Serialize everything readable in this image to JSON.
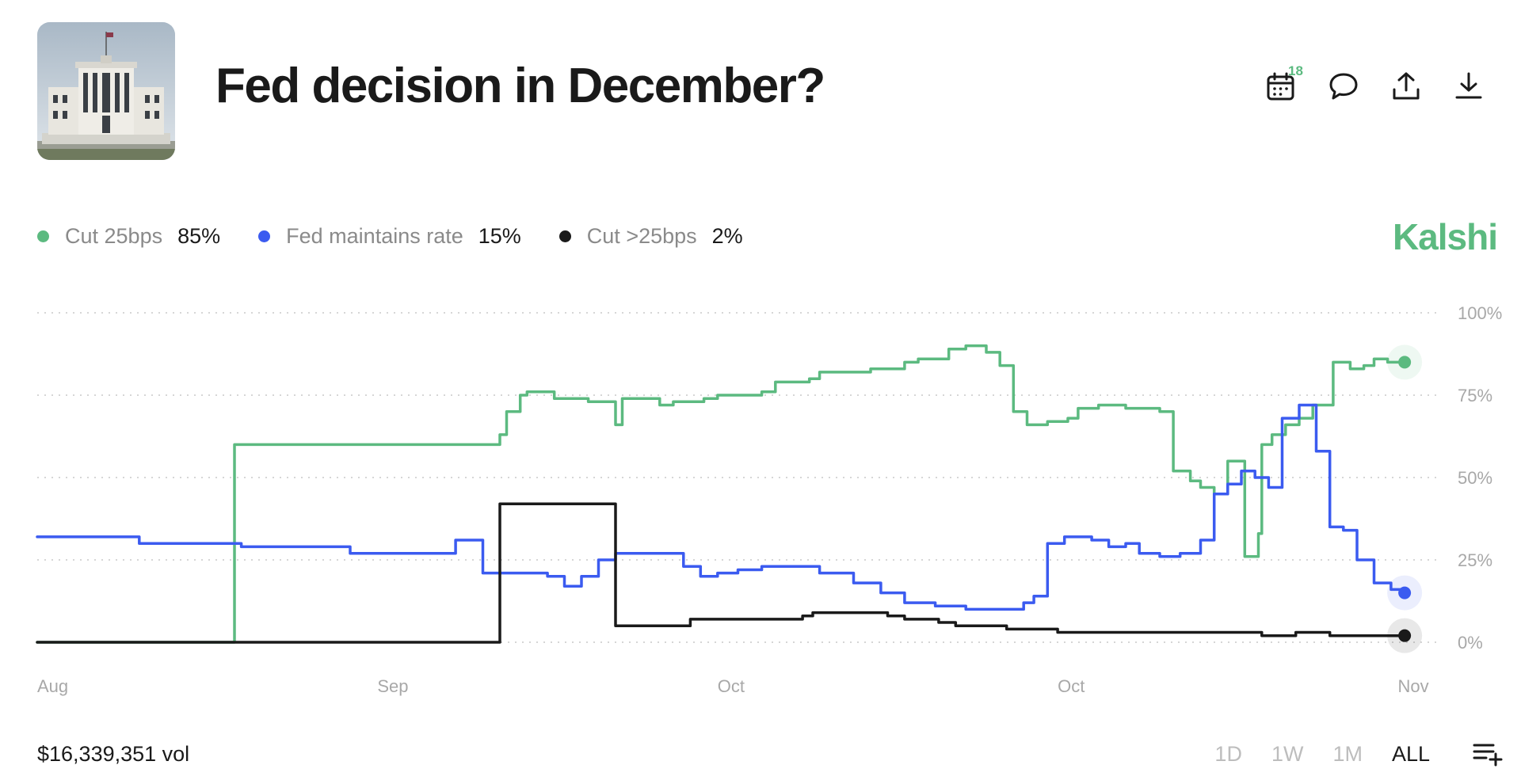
{
  "header": {
    "title": "Fed decision in December?",
    "thumbnail_icon": "federal-reserve-building-photo",
    "calendar_badge": "18",
    "actions": [
      "calendar-icon",
      "comment-icon",
      "share-icon",
      "download-icon"
    ]
  },
  "brand": {
    "name": "Kalshi",
    "color": "#5cba80"
  },
  "legend": [
    {
      "name": "Cut 25bps",
      "value": "85%",
      "color": "#5cba80"
    },
    {
      "name": "Fed maintains rate",
      "value": "15%",
      "color": "#3b5bf0"
    },
    {
      "name": "Cut >25bps",
      "value": "2%",
      "color": "#1a1a1a"
    }
  ],
  "footer": {
    "volume": "$16,339,351 vol",
    "ranges": [
      "1D",
      "1W",
      "1M",
      "ALL"
    ],
    "active_range": "ALL",
    "menu_icon": "list-add-icon"
  },
  "chart_data": {
    "type": "line",
    "title": "",
    "xlabel": "",
    "ylabel": "",
    "ylim": [
      0,
      100
    ],
    "yticks": [
      "100%",
      "75%",
      "50%",
      "25%",
      "0%"
    ],
    "yticks_values": [
      100,
      75,
      50,
      25,
      0
    ],
    "xticks": [
      "Aug",
      "Sep",
      "Oct",
      "Oct",
      "Nov"
    ],
    "xticks_pos": [
      0,
      10,
      20,
      30,
      40
    ],
    "xlim": [
      0,
      40.5
    ],
    "grid": "horizontal-dotted",
    "legend_position": "top-left",
    "series": [
      {
        "name": "Cut 25bps",
        "color": "#5cba80",
        "x": [
          0,
          5.8,
          5.8,
          13.2,
          13.6,
          13.8,
          14.2,
          14.4,
          15.2,
          16.2,
          17.0,
          17.2,
          18.3,
          18.7,
          19.6,
          20.0,
          21.3,
          21.7,
          22.7,
          23.0,
          23.9,
          24.5,
          25.5,
          25.9,
          26.8,
          27.3,
          27.9,
          28.3,
          28.7,
          29.1,
          29.7,
          30.3,
          30.6,
          31.2,
          32.0,
          32.4,
          33.0,
          33.4,
          33.9,
          34.2,
          34.6,
          35.0,
          35.5,
          35.9,
          36.0,
          36.3,
          36.7,
          37.1,
          37.5,
          38.1,
          38.6,
          39.0,
          39.3,
          39.7,
          40.2
        ],
        "values": [
          0,
          0,
          60,
          60,
          63,
          70,
          75,
          76,
          74,
          73,
          66,
          74,
          72,
          73,
          74,
          75,
          76,
          79,
          80,
          82,
          82,
          83,
          85,
          86,
          89,
          90,
          88,
          84,
          70,
          66,
          67,
          68,
          71,
          72,
          71,
          71,
          70,
          52,
          49,
          47,
          45,
          55,
          26,
          33,
          60,
          63,
          66,
          68,
          72,
          85,
          83,
          84,
          86,
          85,
          85
        ]
      },
      {
        "name": "Fed maintains rate",
        "color": "#3b5bf0",
        "x": [
          0,
          2.8,
          3.0,
          6.0,
          9.2,
          12.3,
          13.1,
          13.6,
          15.0,
          15.5,
          16.0,
          16.5,
          17.0,
          18.3,
          19.0,
          19.5,
          20.0,
          20.6,
          21.3,
          22.2,
          23.0,
          24.0,
          24.8,
          25.5,
          26.4,
          27.3,
          27.8,
          28.6,
          29.0,
          29.3,
          29.7,
          30.2,
          31.0,
          31.5,
          32.0,
          32.4,
          33.0,
          33.6,
          34.2,
          34.6,
          35.0,
          35.4,
          35.8,
          36.2,
          36.6,
          37.1,
          37.6,
          38.0,
          38.4,
          38.8,
          39.3,
          39.8,
          40.2
        ],
        "values": [
          32,
          32,
          30,
          29,
          27,
          31,
          21,
          21,
          20,
          17,
          20,
          25,
          27,
          27,
          23,
          20,
          21,
          22,
          23,
          23,
          21,
          18,
          15,
          12,
          11,
          10,
          10,
          10,
          12,
          14,
          30,
          32,
          31,
          29,
          30,
          27,
          26,
          27,
          31,
          45,
          48,
          52,
          50,
          47,
          68,
          72,
          58,
          35,
          34,
          25,
          18,
          16,
          15
        ]
      },
      {
        "name": "Cut >25bps",
        "color": "#1a1a1a",
        "x": [
          0,
          13.6,
          13.6,
          16.9,
          17.0,
          19.0,
          19.2,
          22.5,
          22.8,
          25.0,
          25.5,
          26.5,
          27.0,
          28.0,
          28.5,
          29.0,
          30.0,
          32.0,
          34.0,
          36.0,
          37.0,
          38.0,
          39.0,
          40.2
        ],
        "values": [
          0,
          0,
          42,
          42,
          5,
          5,
          7,
          8,
          9,
          8,
          7,
          6,
          5,
          5,
          4,
          4,
          3,
          3,
          3,
          2,
          3,
          2,
          2,
          2
        ]
      }
    ]
  }
}
